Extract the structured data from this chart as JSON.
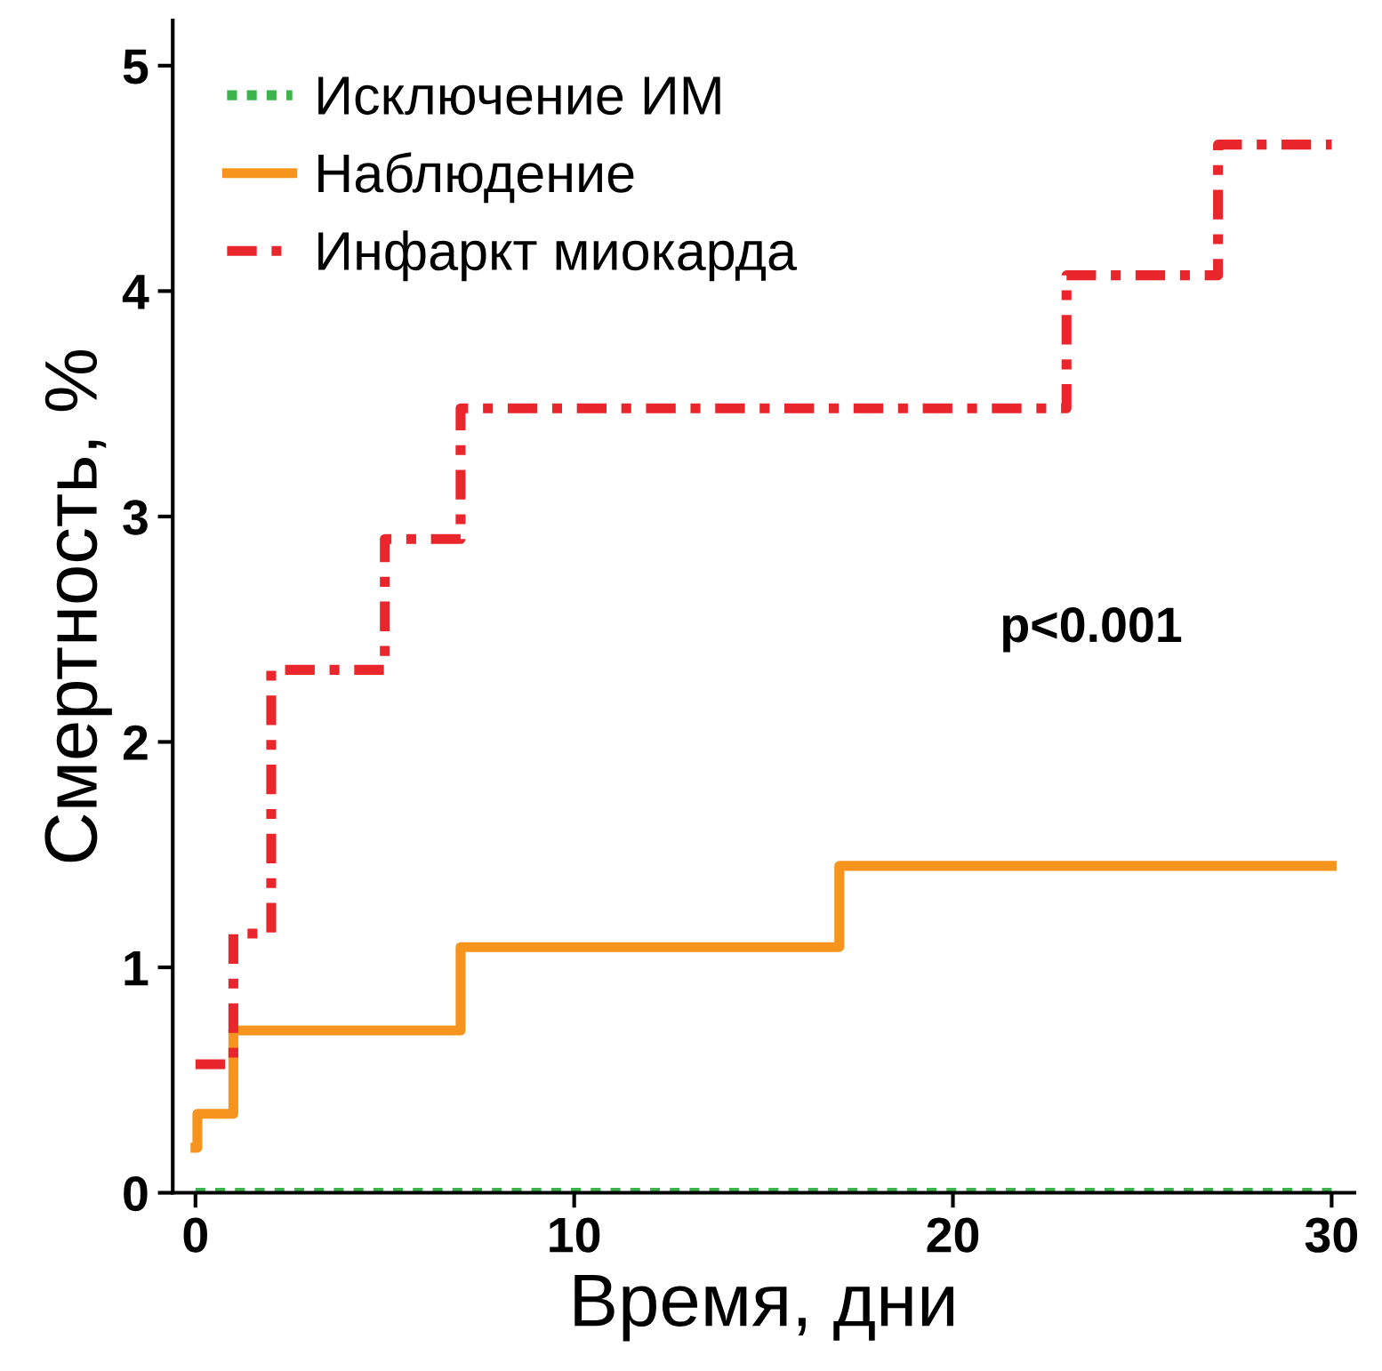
{
  "chart_data": {
    "type": "step",
    "xlabel": "Время, дни",
    "ylabel": "Смертность, %",
    "xlim": [
      -0.6,
      30.6
    ],
    "ylim": [
      0,
      5.2
    ],
    "xticks": [
      0,
      10,
      20,
      30
    ],
    "yticks": [
      0,
      1,
      2,
      3,
      4,
      5
    ],
    "grid": false,
    "legend": "top left",
    "marker": "none",
    "annotations": [
      "p<0.001"
    ],
    "series": [
      {
        "name": "Исключение ИМ",
        "color": "#3cb44b",
        "line_style": "dotted",
        "x": [
          0,
          30
        ],
        "values": [
          0,
          0
        ]
      },
      {
        "name": "Наблюдение",
        "color": "#f7941d",
        "line_style": "solid",
        "x": [
          0,
          0.05,
          1,
          7,
          17,
          30
        ],
        "values": [
          0.2,
          0.35,
          0.72,
          1.09,
          1.45,
          1.45
        ]
      },
      {
        "name": "Инфаркт миокарда",
        "color": "#e8262c",
        "line_style": "dashed",
        "x": [
          0,
          1,
          2,
          5,
          7,
          23,
          27,
          30
        ],
        "values": [
          0.57,
          1.15,
          2.32,
          2.9,
          3.48,
          4.07,
          4.65,
          4.65
        ]
      }
    ]
  }
}
